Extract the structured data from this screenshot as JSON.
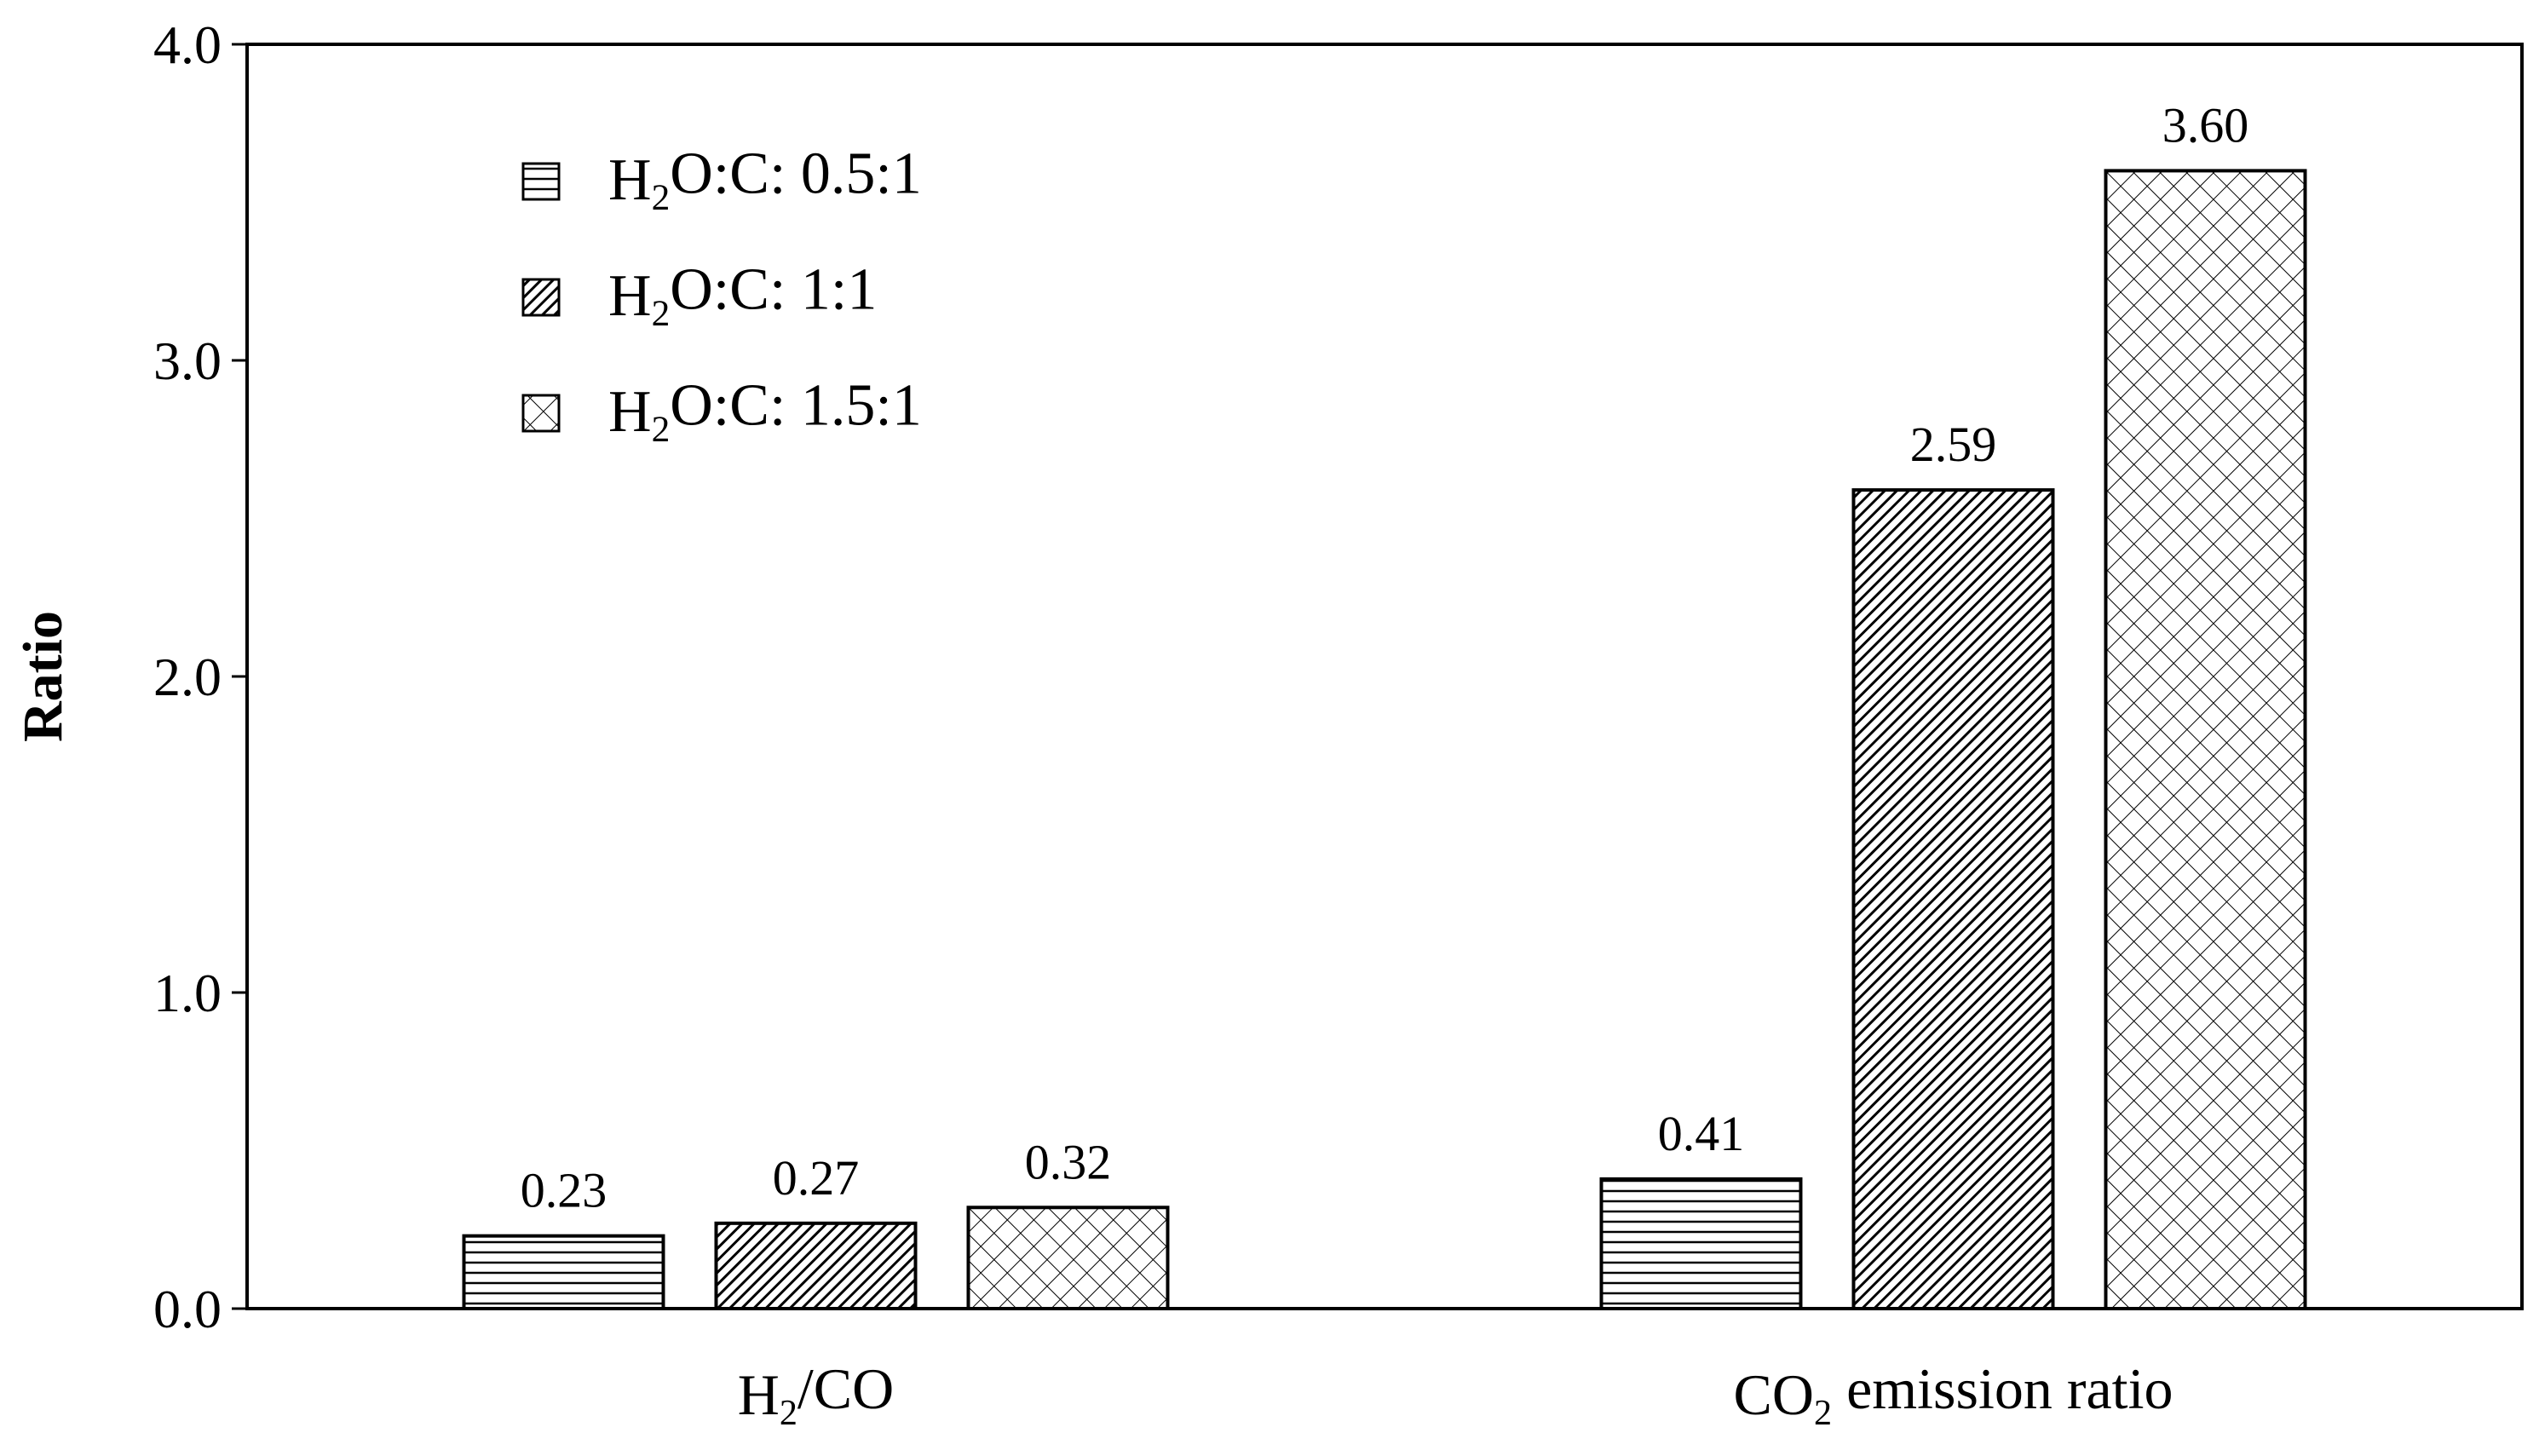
{
  "chart_data": {
    "type": "bar",
    "title": "",
    "xlabel": "",
    "ylabel": "Ratio",
    "ylim": [
      0,
      4
    ],
    "yticks": [
      "0.0",
      "1.0",
      "2.0",
      "3.0",
      "4.0"
    ],
    "grid": false,
    "legend_position": "top-left",
    "categories": [
      {
        "pre": "H",
        "sub": "2",
        "post": "/CO"
      },
      {
        "pre": "CO",
        "sub": "2",
        "post": " emission ratio"
      }
    ],
    "series": [
      {
        "name": {
          "pre": "H",
          "sub": "2",
          "post": "O:C: 0.5:1"
        },
        "pattern": "horizontal-lines",
        "values": [
          0.23,
          0.41
        ],
        "labels": [
          "0.23",
          "0.41"
        ]
      },
      {
        "name": {
          "pre": "H",
          "sub": "2",
          "post": "O:C: 1:1"
        },
        "pattern": "dense-diagonal-lines",
        "values": [
          0.27,
          2.59
        ],
        "labels": [
          "0.27",
          "2.59"
        ]
      },
      {
        "name": {
          "pre": "H",
          "sub": "2",
          "post": "O:C: 1.5:1"
        },
        "pattern": "crosshatch",
        "values": [
          0.32,
          3.6
        ],
        "labels": [
          "0.32",
          "3.60"
        ]
      }
    ]
  },
  "colors": {
    "axis": "#000000",
    "bar_fill": "#ffffff",
    "pattern": "#000000"
  }
}
